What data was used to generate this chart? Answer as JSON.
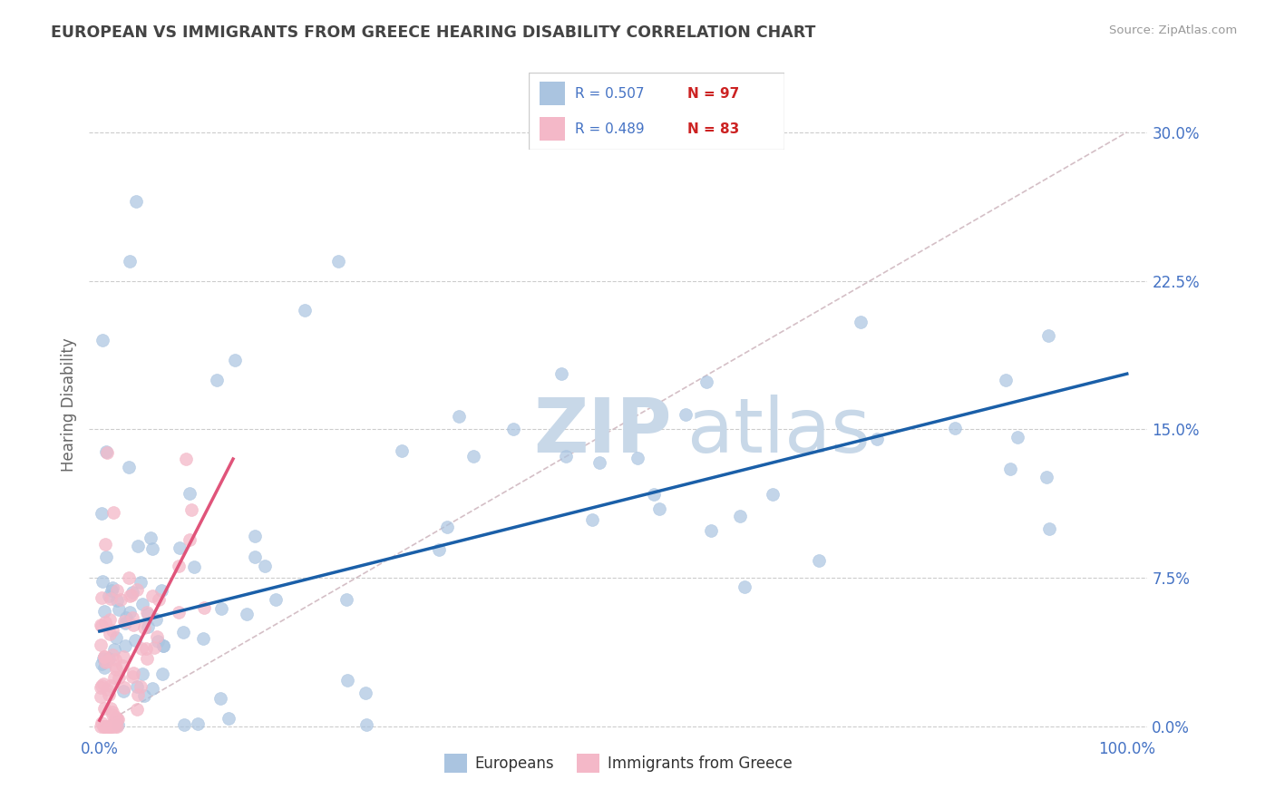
{
  "title": "EUROPEAN VS IMMIGRANTS FROM GREECE HEARING DISABILITY CORRELATION CHART",
  "source": "Source: ZipAtlas.com",
  "ylabel": "Hearing Disability",
  "xlim": [
    -0.01,
    1.02
  ],
  "ylim": [
    -0.005,
    0.33
  ],
  "xtick_positions": [
    0.0,
    1.0
  ],
  "xtick_labels": [
    "0.0%",
    "100.0%"
  ],
  "ytick_positions": [
    0.0,
    0.075,
    0.15,
    0.225,
    0.3
  ],
  "ytick_labels": [
    "0.0%",
    "7.5%",
    "15.0%",
    "22.5%",
    "30.0%"
  ],
  "background_color": "#ffffff",
  "grid_color": "#cccccc",
  "watermark_zip": "ZIP",
  "watermark_atlas": "atlas",
  "watermark_color": "#c8d8e8",
  "title_color": "#444444",
  "tick_color": "#4472c4",
  "legend_r1": "R = 0.507",
  "legend_n1": "N = 97",
  "legend_r2": "R = 0.489",
  "legend_n2": "N = 83",
  "blue_color": "#aac4e0",
  "pink_color": "#f4b8c8",
  "blue_line_color": "#1a5fa8",
  "pink_line_color": "#e0547a",
  "blue_line_x": [
    0.0,
    1.0
  ],
  "blue_line_y": [
    0.048,
    0.178
  ],
  "pink_line_x": [
    0.0,
    0.13
  ],
  "pink_line_y": [
    0.003,
    0.135
  ],
  "diag_line_color": "#d0b8c0",
  "marker_size": 100,
  "blue_alpha": 0.7,
  "pink_alpha": 0.75
}
